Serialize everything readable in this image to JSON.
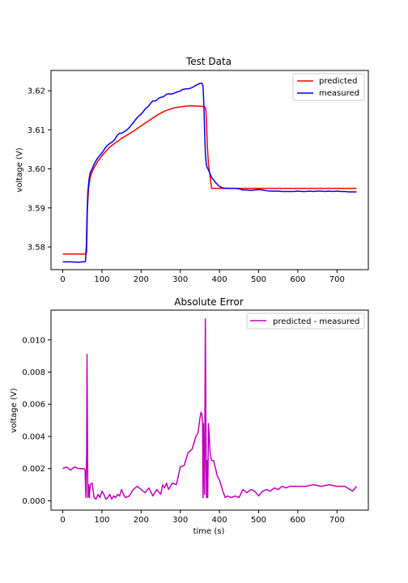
{
  "chart_data": [
    {
      "type": "line",
      "title": "Test Data",
      "xlabel": "",
      "ylabel": "voltage (V)",
      "xlim": [
        -30,
        780
      ],
      "ylim": [
        3.5742,
        3.6252
      ],
      "xticks": [
        0,
        100,
        200,
        300,
        400,
        500,
        600,
        700
      ],
      "yticks": [
        3.58,
        3.59,
        3.6,
        3.61,
        3.62
      ],
      "ytick_labels": [
        "3.58",
        "3.59",
        "3.60",
        "3.61",
        "3.62"
      ],
      "grid": false,
      "legend": "top-right",
      "series": [
        {
          "name": "predicted",
          "color": "#ff0000",
          "x": [
            0,
            58,
            61,
            63,
            66,
            70,
            75,
            80,
            90,
            100,
            120,
            150,
            180,
            210,
            240,
            260,
            280,
            300,
            320,
            340,
            355,
            362,
            365,
            367,
            369,
            372,
            375,
            378,
            380,
            385,
            400,
            500,
            600,
            700,
            750
          ],
          "y": [
            3.5782,
            3.5782,
            3.5786,
            3.59,
            3.595,
            3.5978,
            3.5993,
            3.6003,
            3.602,
            3.6034,
            3.6056,
            3.6078,
            3.6096,
            3.6117,
            3.6137,
            3.6148,
            3.6155,
            3.6159,
            3.6161,
            3.6161,
            3.616,
            3.6159,
            3.6155,
            3.612,
            3.606,
            3.601,
            3.599,
            3.5965,
            3.595,
            3.595,
            3.595,
            3.595,
            3.595,
            3.595,
            3.595
          ]
        },
        {
          "name": "measured",
          "color": "#0000ff",
          "x": [
            0,
            20,
            40,
            50,
            55,
            58,
            60,
            62,
            64,
            67,
            70,
            75,
            80,
            85,
            90,
            95,
            100,
            105,
            110,
            115,
            120,
            125,
            130,
            135,
            140,
            145,
            150,
            155,
            160,
            165,
            170,
            175,
            180,
            185,
            190,
            195,
            200,
            205,
            210,
            215,
            220,
            225,
            230,
            235,
            240,
            245,
            250,
            255,
            260,
            265,
            270,
            275,
            280,
            285,
            290,
            295,
            300,
            305,
            310,
            315,
            320,
            325,
            330,
            335,
            340,
            345,
            350,
            355,
            358,
            360,
            362,
            364,
            366,
            368,
            370,
            375,
            380,
            385,
            390,
            395,
            400,
            410,
            420,
            430,
            440,
            450,
            460,
            470,
            480,
            490,
            500,
            510,
            520,
            530,
            540,
            550,
            560,
            570,
            580,
            590,
            600,
            610,
            620,
            630,
            640,
            650,
            660,
            670,
            680,
            690,
            700,
            710,
            720,
            730,
            740,
            750
          ],
          "y": [
            3.5762,
            3.5762,
            3.5761,
            3.5762,
            3.5762,
            3.5763,
            3.58,
            3.588,
            3.594,
            3.5972,
            3.599,
            3.6,
            3.6012,
            3.6021,
            3.6029,
            3.6035,
            3.6041,
            3.6048,
            3.6056,
            3.6061,
            3.6065,
            3.6068,
            3.6072,
            3.6079,
            3.6087,
            3.6091,
            3.6091,
            3.6094,
            3.6097,
            3.6101,
            3.6106,
            3.6112,
            3.6118,
            3.6125,
            3.6131,
            3.6136,
            3.614,
            3.6146,
            3.6153,
            3.6157,
            3.6162,
            3.6169,
            3.6174,
            3.6174,
            3.6176,
            3.6181,
            3.6183,
            3.6184,
            3.6187,
            3.6191,
            3.6192,
            3.6192,
            3.6192,
            3.6194,
            3.6196,
            3.6198,
            3.6199,
            3.6203,
            3.6204,
            3.6205,
            3.6205,
            3.6206,
            3.6208,
            3.6211,
            3.6214,
            3.6216,
            3.6219,
            3.6219,
            3.6213,
            3.617,
            3.61,
            3.604,
            3.6015,
            3.6005,
            3.6001,
            3.599,
            3.5978,
            3.5972,
            3.5965,
            3.596,
            3.5955,
            3.5951,
            3.595,
            3.595,
            3.595,
            3.5949,
            3.5946,
            3.5946,
            3.5945,
            3.5946,
            3.5947,
            3.5946,
            3.5944,
            3.5943,
            3.5943,
            3.5943,
            3.5942,
            3.5942,
            3.5942,
            3.5942,
            3.5943,
            3.5942,
            3.5942,
            3.5943,
            3.5942,
            3.5943,
            3.5943,
            3.5942,
            3.5943,
            3.5942,
            3.5943,
            3.5942,
            3.5942,
            3.5941,
            3.5941,
            3.5941
          ]
        }
      ]
    },
    {
      "type": "line",
      "title": "Absolute Error",
      "xlabel": "time (s)",
      "ylabel": "voltage (V)",
      "xlim": [
        -30,
        780
      ],
      "ylim": [
        -0.00058,
        0.01185
      ],
      "xticks": [
        0,
        100,
        200,
        300,
        400,
        500,
        600,
        700
      ],
      "yticks": [
        0.0,
        0.002,
        0.004,
        0.006,
        0.008,
        0.01
      ],
      "ytick_labels": [
        "0.000",
        "0.002",
        "0.004",
        "0.006",
        "0.008",
        "0.010"
      ],
      "grid": false,
      "legend": "top-right",
      "series": [
        {
          "name": "predicted - measured",
          "color": "#bf00bf",
          "x": [
            0,
            10,
            20,
            30,
            40,
            50,
            55,
            57,
            59,
            61,
            62,
            63,
            64,
            66,
            68,
            70,
            75,
            80,
            85,
            90,
            95,
            100,
            105,
            110,
            115,
            120,
            125,
            130,
            135,
            140,
            145,
            150,
            155,
            160,
            170,
            180,
            190,
            200,
            210,
            220,
            230,
            240,
            250,
            255,
            260,
            265,
            270,
            280,
            290,
            300,
            310,
            320,
            330,
            340,
            345,
            350,
            353,
            355,
            357,
            358,
            359,
            360,
            362,
            364,
            366,
            367,
            368,
            369,
            370,
            372,
            374,
            376,
            378,
            380,
            385,
            390,
            395,
            400,
            405,
            410,
            415,
            420,
            430,
            440,
            450,
            460,
            470,
            480,
            490,
            500,
            510,
            520,
            530,
            540,
            550,
            560,
            570,
            580,
            590,
            600,
            620,
            640,
            660,
            680,
            700,
            720,
            740,
            750
          ],
          "y": [
            0.002,
            0.0021,
            0.0019,
            0.0021,
            0.002,
            0.002,
            0.002,
            0.0019,
            0.0002,
            0.003,
            0.0091,
            0.005,
            0.0002,
            0.001,
            0.0002,
            0.001,
            0.0011,
            0.0002,
            0.0001,
            0.0004,
            0.0002,
            0.0006,
            0.0004,
            0.0001,
            0.0002,
            0.0004,
            0.0001,
            0.0003,
            0.0002,
            0.0004,
            0.0003,
            0.0007,
            0.0004,
            0.0002,
            0.0003,
            0.0007,
            0.0009,
            0.0007,
            0.0005,
            0.0008,
            0.0003,
            0.0007,
            0.0004,
            0.001,
            0.0008,
            0.0011,
            0.0007,
            0.0011,
            0.001,
            0.0021,
            0.0022,
            0.003,
            0.0032,
            0.004,
            0.0042,
            0.0051,
            0.0055,
            0.0054,
            0.0048,
            0.0002,
            0.0048,
            0.003,
            0.0004,
            0.0113,
            0.002,
            0.0002,
            0.0025,
            0.0012,
            0.0002,
            0.0048,
            0.004,
            0.003,
            0.0027,
            0.0025,
            0.0025,
            0.002,
            0.0015,
            0.0013,
            0.0009,
            0.0005,
            0.0002,
            0.0003,
            0.0002,
            0.0003,
            0.0002,
            0.0007,
            0.0005,
            0.0007,
            0.0006,
            0.0003,
            0.0006,
            0.0007,
            0.0006,
            0.0008,
            0.0007,
            0.0009,
            0.0008,
            0.0009,
            0.0009,
            0.0009,
            0.0009,
            0.001,
            0.0009,
            0.001,
            0.0009,
            0.0009,
            0.0006,
            0.0009
          ]
        }
      ]
    }
  ]
}
